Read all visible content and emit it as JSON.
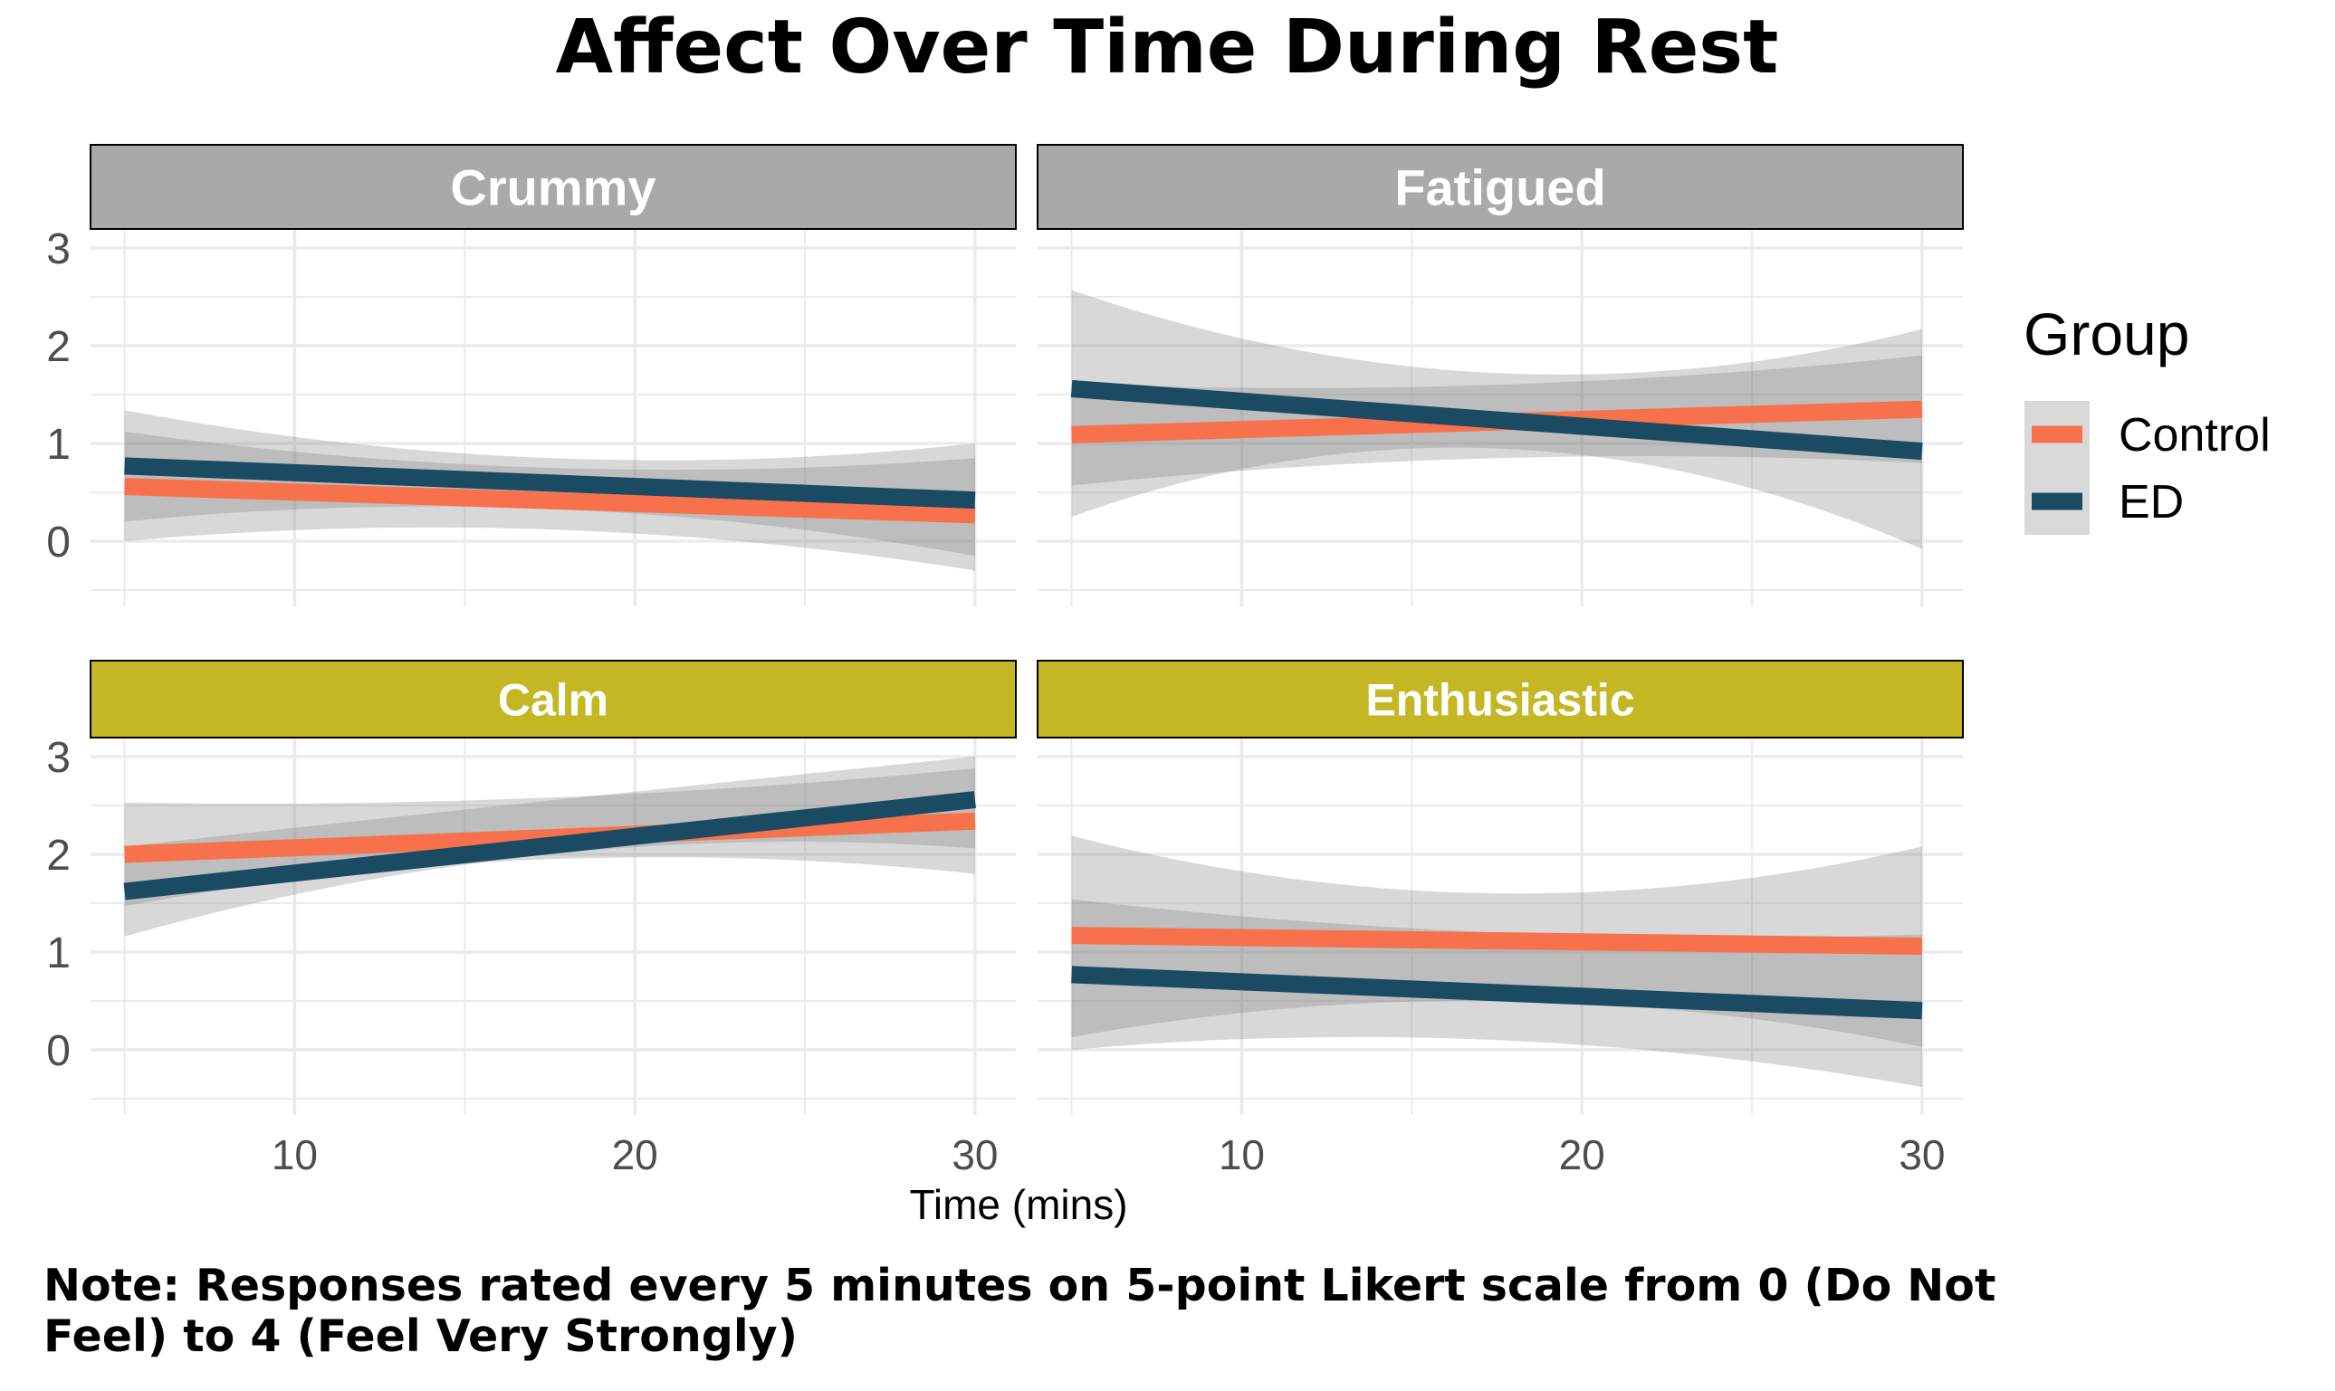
{
  "chart_data": {
    "type": "line",
    "title": "Affect Over Time During Rest",
    "xlabel": "Time (mins)",
    "ylabel": "",
    "xlim": [
      4,
      31.2
    ],
    "ylim": [
      -0.5,
      3.0
    ],
    "x_ticks": [
      10,
      20,
      30
    ],
    "y_ticks": [
      0,
      1,
      2,
      3
    ],
    "grid": true,
    "legend": {
      "title": "Group",
      "position": "right",
      "entries": [
        {
          "name": "Control",
          "color": "#F7714C"
        },
        {
          "name": "ED",
          "color": "#1B4A63"
        }
      ]
    },
    "facet_colors": {
      "negative": "#A9A9A9",
      "positive": "#C3B823"
    },
    "panels": [
      {
        "label": "Crummy",
        "strip": "negative",
        "series": [
          {
            "name": "Control",
            "x": [
              5,
              30
            ],
            "y": [
              0.56,
              0.27
            ],
            "lower": [
              0.0,
              -0.3
            ],
            "upper": [
              1.12,
              0.85
            ],
            "mid_band": [
              0.12,
              0.75
            ]
          },
          {
            "name": "ED",
            "x": [
              5,
              30
            ],
            "y": [
              0.77,
              0.42
            ],
            "lower": [
              0.2,
              -0.15
            ],
            "upper": [
              1.34,
              1.0
            ],
            "mid_band": [
              0.33,
              0.85
            ]
          }
        ]
      },
      {
        "label": "Fatigued",
        "strip": "negative",
        "series": [
          {
            "name": "Control",
            "x": [
              5,
              30
            ],
            "y": [
              1.09,
              1.35
            ],
            "lower": [
              0.57,
              0.8
            ],
            "upper": [
              1.61,
              1.9
            ],
            "mid_band": [
              0.85,
              1.6
            ]
          },
          {
            "name": "ED",
            "x": [
              5,
              30
            ],
            "y": [
              1.56,
              0.92
            ],
            "lower": [
              0.25,
              -0.08
            ],
            "upper": [
              2.57,
              2.17
            ],
            "mid_band": [
              0.95,
              1.72
            ]
          }
        ]
      },
      {
        "label": "Calm",
        "strip": "positive",
        "series": [
          {
            "name": "Control",
            "x": [
              5,
              30
            ],
            "y": [
              2.0,
              2.34
            ],
            "lower": [
              1.47,
              1.8
            ],
            "upper": [
              2.53,
              2.88
            ],
            "mid_band": [
              1.95,
              2.58
            ]
          },
          {
            "name": "ED",
            "x": [
              5,
              30
            ],
            "y": [
              1.62,
              2.56
            ],
            "lower": [
              1.16,
              2.06
            ],
            "upper": [
              2.08,
              3.0
            ],
            "mid_band": [
              2.0,
              2.55
            ]
          }
        ]
      },
      {
        "label": "Enthusiastic",
        "strip": "positive",
        "series": [
          {
            "name": "Control",
            "x": [
              5,
              30
            ],
            "y": [
              1.17,
              1.06
            ],
            "lower": [
              0.13,
              0.03
            ],
            "upper": [
              2.19,
              2.08
            ],
            "mid_band": [
              0.5,
              1.6
            ]
          },
          {
            "name": "ED",
            "x": [
              5,
              30
            ],
            "y": [
              0.77,
              0.4
            ],
            "lower": [
              0.0,
              -0.38
            ],
            "upper": [
              1.54,
              1.18
            ],
            "mid_band": [
              0.1,
              1.2
            ]
          }
        ]
      }
    ],
    "note": "Note: Responses rated every 5 minutes on 5-point Likert scale from 0 (Do Not Feel) to 4 (Feel Very Strongly)"
  }
}
